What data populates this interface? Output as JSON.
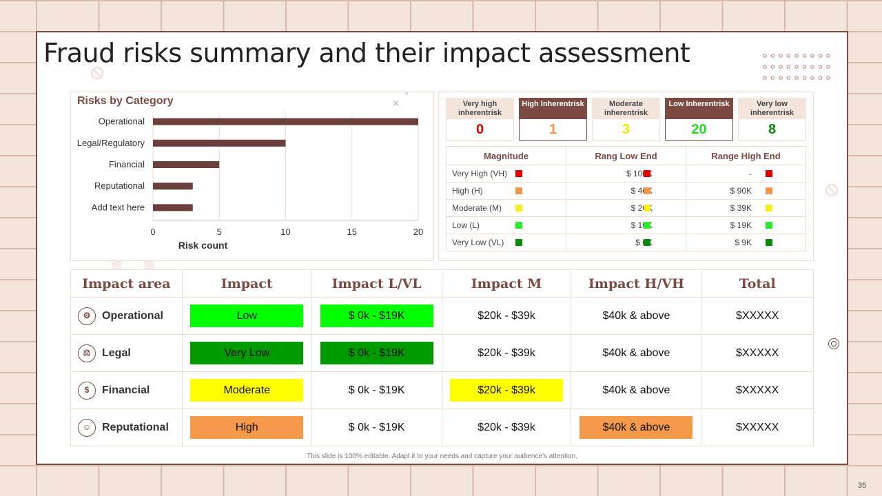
{
  "title": "Fraud risks summary and their impact assessment",
  "chart": {
    "title": "Risks by Category",
    "close_symbol": "×"
  },
  "chart_data": {
    "type": "bar",
    "orientation": "horizontal",
    "categories": [
      "Operational",
      "Legal/Regulatory",
      "Financial",
      "Reputational",
      "Add text here"
    ],
    "values": [
      20,
      10,
      5,
      3,
      3
    ],
    "xlabel": "Risk count",
    "ylabel": "",
    "xlim": [
      0,
      20
    ],
    "xticks": [
      "0",
      "5",
      "10",
      "15",
      "20"
    ],
    "grid": "vertical",
    "color": "#6b3f3b"
  },
  "levels": [
    {
      "label": "Very high inherentrisk",
      "value": "0",
      "color": "#e00000",
      "style": "light"
    },
    {
      "label": "High Inherentrisk",
      "value": "1",
      "color": "#f0964a",
      "style": "dark"
    },
    {
      "label": "Moderate inherentrisk",
      "value": "3",
      "color": "#f2e400",
      "style": "light"
    },
    {
      "label": "Low Inherentrisk",
      "value": "20",
      "color": "#2ad62a",
      "style": "dark"
    },
    {
      "label": "Very low inherentrisk",
      "value": "8",
      "color": "#0a8a0a",
      "style": "light"
    }
  ],
  "range_table": {
    "headers": [
      "Magnitude",
      "Rang Low  End",
      "Range High  End"
    ],
    "rows": [
      {
        "magnitude": "Very High (VH)",
        "low": "$ 100K",
        "high": "-",
        "color": "#e00000"
      },
      {
        "magnitude": "High (H)",
        "low": "$ 40K",
        "high": "$ 90K",
        "color": "#f0964a"
      },
      {
        "magnitude": "Moderate (M)",
        "low": "$ 20K",
        "high": "$ 39K",
        "color": "#f5ee1a"
      },
      {
        "magnitude": "Low (L)",
        "low": "$ 10K",
        "high": "$ 19K",
        "color": "#2ee82e"
      },
      {
        "magnitude": "Very Low (VL)",
        "low": "$ 0K",
        "high": "$ 9K",
        "color": "#0a8a0a"
      }
    ]
  },
  "impact_table": {
    "headers": [
      "Impact area",
      "Impact",
      "Impact L/VL",
      "Impact M",
      "Impact H/VH",
      "Total"
    ],
    "rows": [
      {
        "area": "Operational",
        "icon": "gears-icon",
        "impact": "Low",
        "impact_color": "#00ff00",
        "lvl": "$ 0k - $19K",
        "lvl_color": "#00ff00",
        "m": "$20k - $39k",
        "m_color": "",
        "h": "$40k & above",
        "h_color": "",
        "total": "$XXXXX"
      },
      {
        "area": "Legal",
        "icon": "scales-icon",
        "impact": "Very Low",
        "impact_color": "#009900",
        "lvl": "$ 0k - $19K",
        "lvl_color": "#009900",
        "m": "$20k - $39k",
        "m_color": "",
        "h": "$40k & above",
        "h_color": "",
        "total": "$XXXXX"
      },
      {
        "area": "Financial",
        "icon": "money-hand-icon",
        "impact": "Moderate",
        "impact_color": "#ffff00",
        "lvl": "$ 0k - $19K",
        "lvl_color": "",
        "m": "$20k - $39k",
        "m_color": "#ffff00",
        "h": "$40k & above",
        "h_color": "",
        "total": "$XXXXX"
      },
      {
        "area": "Reputational",
        "icon": "user-badge-icon",
        "impact": "High",
        "impact_color": "#f5994a",
        "lvl": "$ 0k - $19K",
        "lvl_color": "",
        "m": "$20k - $39k",
        "m_color": "",
        "h": "$40k & above",
        "h_color": "#f5994a",
        "total": "$XXXXX"
      }
    ]
  },
  "footer": "This slide is 100% editable. Adapt it to your needs and capture your audience's attention.",
  "page_number": "35"
}
